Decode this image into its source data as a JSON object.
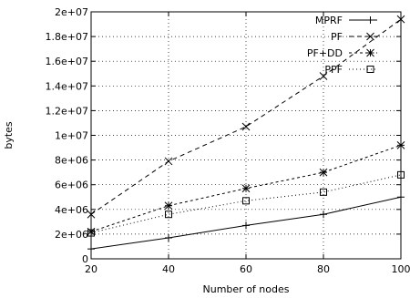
{
  "chart_data": {
    "type": "line",
    "xlabel": "Number of nodes",
    "ylabel": "bytes",
    "x": [
      20,
      40,
      60,
      80,
      100
    ],
    "xlim": [
      20,
      100
    ],
    "ylim": [
      0,
      20000000
    ],
    "xticks": [
      "20",
      "40",
      "60",
      "80",
      "100"
    ],
    "yticks": [
      {
        "value": 0,
        "label": "0"
      },
      {
        "value": 2000000,
        "label": "2e+06"
      },
      {
        "value": 4000000,
        "label": "4e+06"
      },
      {
        "value": 6000000,
        "label": "6e+06"
      },
      {
        "value": 8000000,
        "label": "8e+06"
      },
      {
        "value": 10000000,
        "label": "1e+07"
      },
      {
        "value": 12000000,
        "label": "1.2e+07"
      },
      {
        "value": 14000000,
        "label": "1.4e+07"
      },
      {
        "value": 16000000,
        "label": "1.6e+07"
      },
      {
        "value": 18000000,
        "label": "1.8e+07"
      },
      {
        "value": 20000000,
        "label": "2e+07"
      }
    ],
    "grid": true,
    "legend_position": "top-right",
    "series": [
      {
        "name": "MPRF",
        "marker": "plus",
        "dash": "solid",
        "values": [
          800000,
          1700000,
          2700000,
          3600000,
          5000000
        ]
      },
      {
        "name": "PF",
        "marker": "x",
        "dash": "dashed",
        "values": [
          3600000,
          7900000,
          10700000,
          14800000,
          19400000
        ]
      },
      {
        "name": "PF+DD",
        "marker": "star",
        "dash": "short-dashed",
        "values": [
          2200000,
          4300000,
          5700000,
          7000000,
          9200000
        ]
      },
      {
        "name": "PPF",
        "marker": "square",
        "dash": "dotted",
        "values": [
          2100000,
          3600000,
          4700000,
          5400000,
          6800000
        ]
      }
    ]
  }
}
